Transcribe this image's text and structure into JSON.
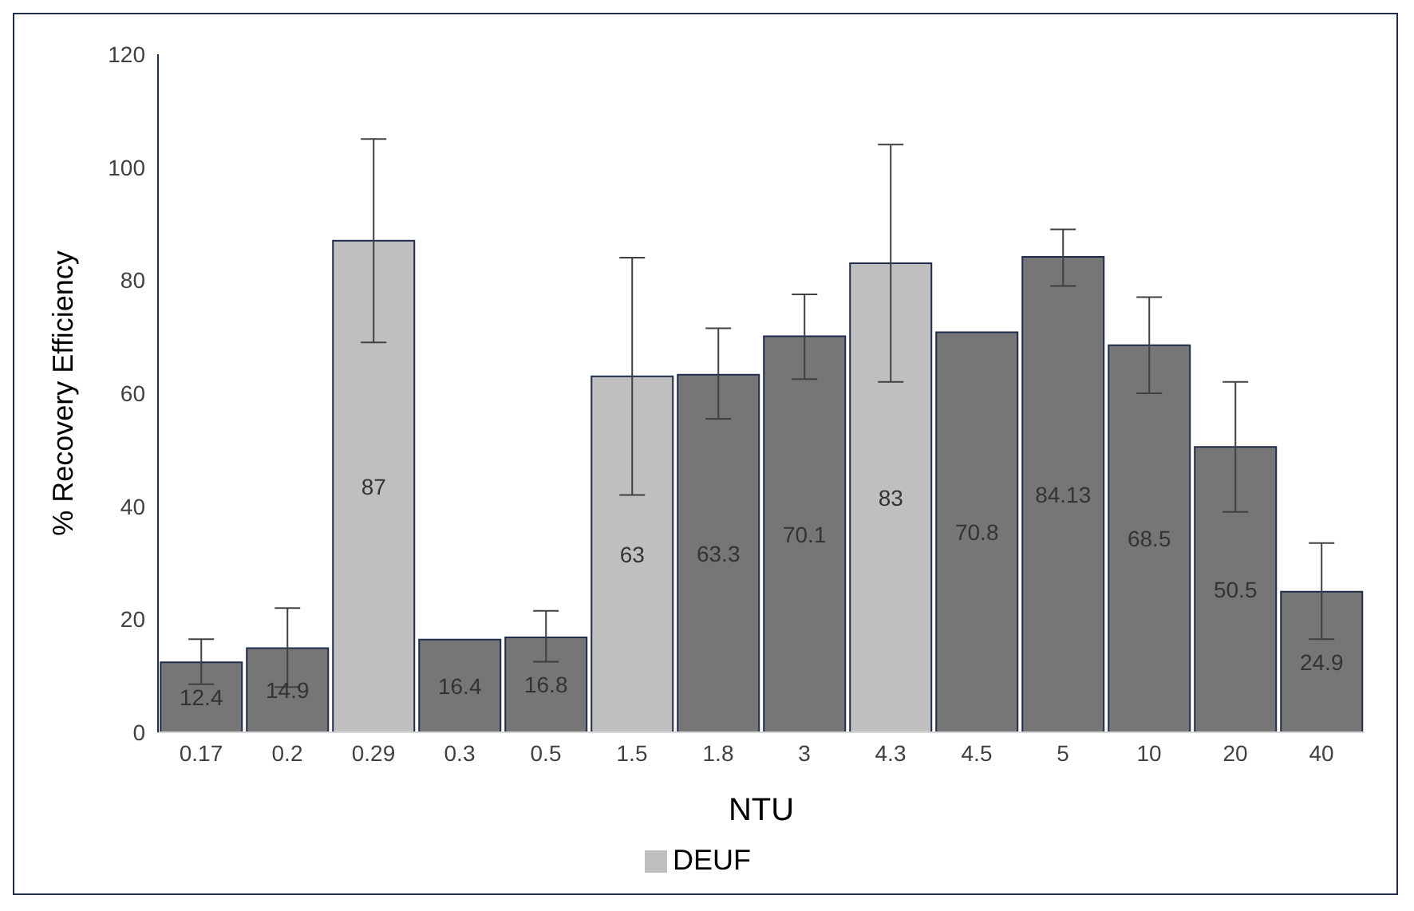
{
  "chart_data": {
    "type": "bar",
    "stacked": true,
    "xlabel": "NTU",
    "ylabel": "% Recovery Efficiency",
    "categories": [
      "0.17",
      "0.2",
      "0.29",
      "0.3",
      "0.5",
      "1.5",
      "1.8",
      "3",
      "4.3",
      "4.5",
      "5",
      "10",
      "20",
      "40"
    ],
    "series": [
      {
        "color": "#767676",
        "values": [
          12.4,
          14.9,
          null,
          16.4,
          16.8,
          null,
          63.3,
          70.1,
          null,
          70.8,
          84.13,
          68.5,
          50.5,
          24.9
        ],
        "errors": [
          [
            8.5,
            16.5
          ],
          [
            8,
            22
          ],
          null,
          null,
          [
            12.5,
            21.5
          ],
          null,
          [
            55.5,
            71.5
          ],
          [
            62.5,
            77.5
          ],
          null,
          null,
          [
            79,
            89
          ],
          [
            60,
            77
          ],
          [
            39,
            62
          ],
          [
            16.5,
            33.5
          ]
        ]
      },
      {
        "name": "DEUF",
        "color": "#bfbfbf",
        "values": [
          null,
          null,
          87,
          null,
          null,
          63,
          null,
          null,
          83,
          null,
          null,
          null,
          null,
          null
        ],
        "errors": [
          null,
          null,
          [
            69,
            105
          ],
          null,
          null,
          [
            42,
            84
          ],
          null,
          null,
          [
            62,
            104
          ],
          null,
          null,
          null,
          null,
          null
        ]
      }
    ],
    "ylim": [
      0,
      120
    ],
    "yticks": [
      0,
      20,
      40,
      60,
      80,
      100,
      120
    ],
    "legend": "bottom",
    "data_labels": true
  }
}
